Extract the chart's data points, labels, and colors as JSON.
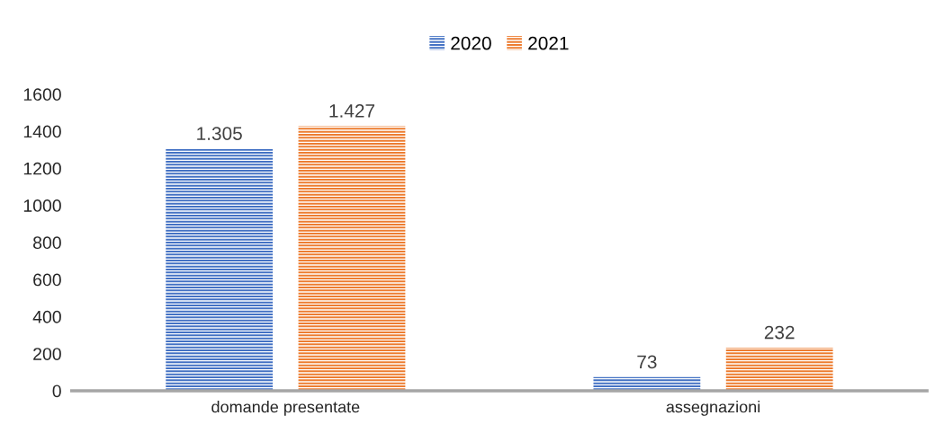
{
  "chart_data": {
    "type": "bar",
    "categories": [
      "domande presentate",
      "assegnazioni"
    ],
    "series": [
      {
        "name": "2020",
        "color": "#4472c4",
        "values": [
          1305,
          73
        ],
        "value_labels": [
          "1.305",
          "73"
        ]
      },
      {
        "name": "2021",
        "color": "#ed7d31",
        "values": [
          1427,
          232
        ],
        "value_labels": [
          "1.427",
          "232"
        ]
      }
    ],
    "ylim": [
      0,
      1600
    ],
    "yticks": [
      0,
      200,
      400,
      600,
      800,
      1000,
      1200,
      1400,
      1600
    ],
    "grid": false,
    "legend": "top"
  }
}
